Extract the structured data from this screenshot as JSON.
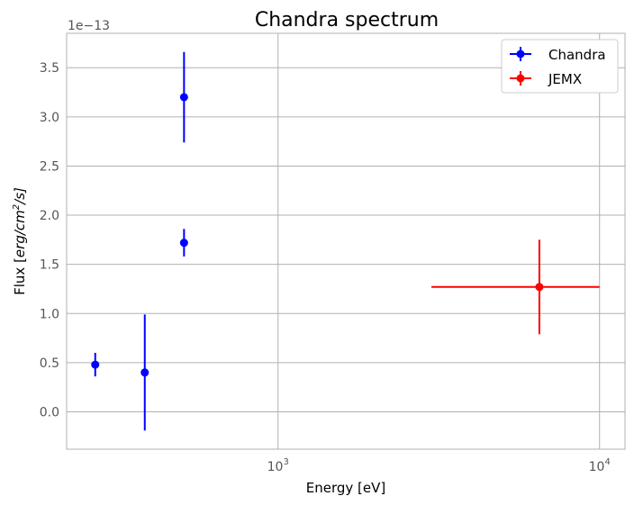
{
  "chart_data": {
    "type": "scatter",
    "title": "Chandra spectrum",
    "xlabel": "Energy [eV]",
    "ylabel_prefix": "Flux [",
    "ylabel_unit": "erg/cm",
    "ylabel_exp": "2",
    "ylabel_suffix": "/s]",
    "y_offset_label": "1e−13",
    "x_scale": "log",
    "xlim": [
      220,
      12000
    ],
    "ylim": [
      -0.38,
      3.85
    ],
    "x_ticks": [
      {
        "value": 1000,
        "base": "10",
        "exp": "3"
      },
      {
        "value": 10000,
        "base": "10",
        "exp": "4"
      }
    ],
    "y_ticks": [
      0.0,
      0.5,
      1.0,
      1.5,
      2.0,
      2.5,
      3.0,
      3.5
    ],
    "y_tick_labels": [
      "0.0",
      "0.5",
      "1.0",
      "1.5",
      "2.0",
      "2.5",
      "3.0",
      "3.5"
    ],
    "grid": true,
    "legend_position": "top-right",
    "series": [
      {
        "name": "Chandra",
        "color": "#0000ff",
        "points": [
          {
            "x": 270,
            "y": 0.48,
            "y_err": 0.12
          },
          {
            "x": 385,
            "y": 0.4,
            "y_err": 0.59
          },
          {
            "x": 510,
            "y": 3.2,
            "y_err": 0.46
          },
          {
            "x": 510,
            "y": 1.72,
            "y_err": 0.14
          }
        ]
      },
      {
        "name": "JEMX",
        "color": "#ff0000",
        "points": [
          {
            "x": 6500,
            "y": 1.27,
            "y_err": 0.48,
            "x_low": 3000,
            "x_high": 10000
          }
        ]
      }
    ]
  }
}
